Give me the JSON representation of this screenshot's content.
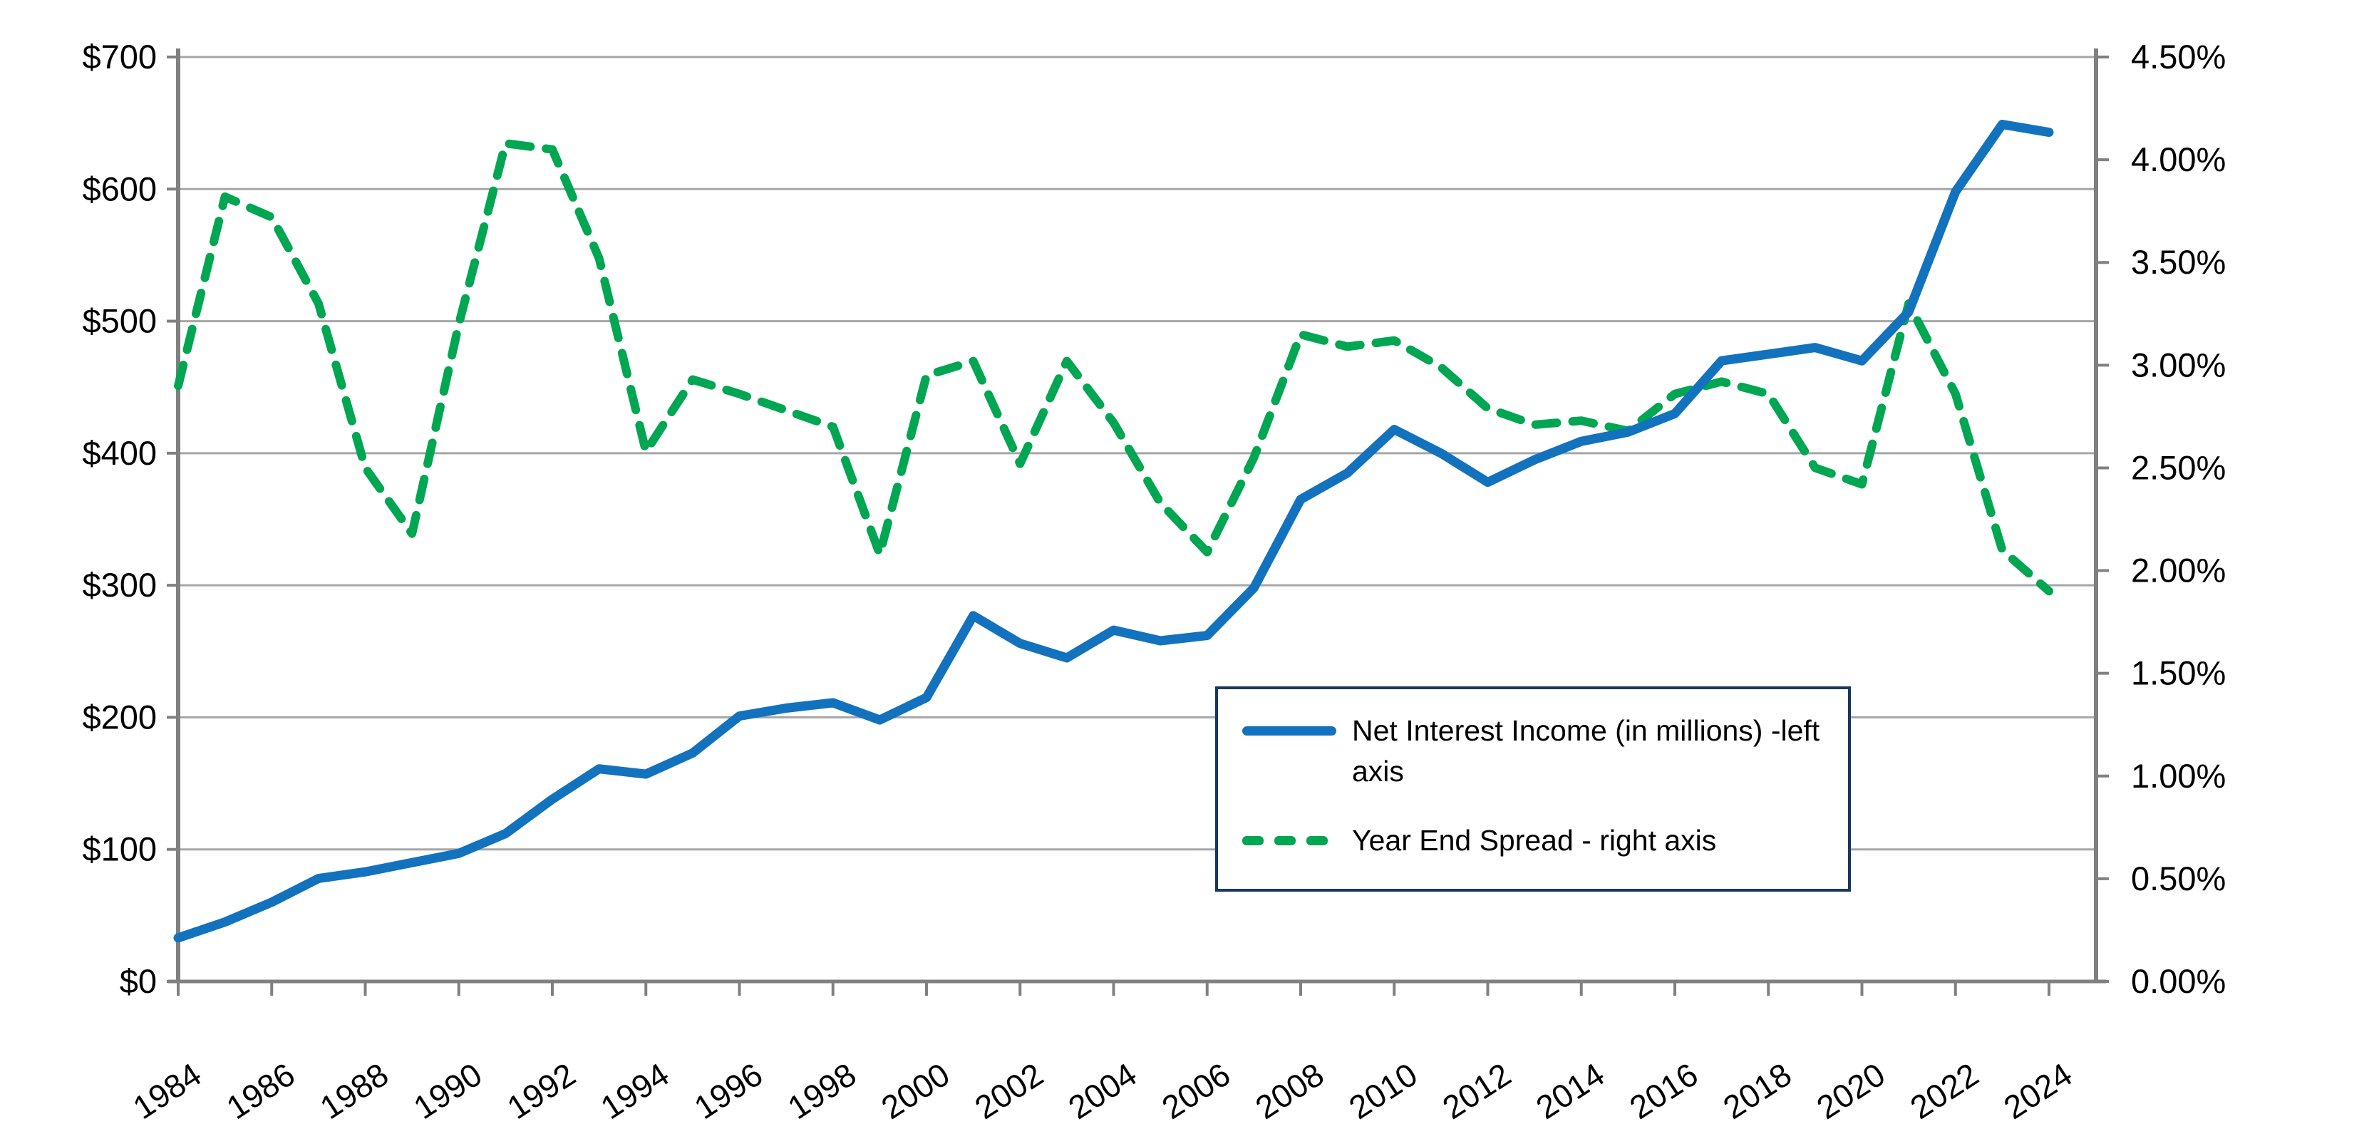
{
  "chart_data": {
    "type": "line",
    "title": "",
    "x": [
      1984,
      1985,
      1986,
      1987,
      1988,
      1989,
      1990,
      1991,
      1992,
      1993,
      1994,
      1995,
      1996,
      1997,
      1998,
      1999,
      2000,
      2001,
      2002,
      2003,
      2004,
      2005,
      2006,
      2007,
      2008,
      2009,
      2010,
      2011,
      2012,
      2013,
      2014,
      2015,
      2016,
      2017,
      2018,
      2019,
      2020,
      2021,
      2022,
      2023,
      2024
    ],
    "x_tick_labels": [
      "1984",
      "1986",
      "1988",
      "1990",
      "1992",
      "1994",
      "1996",
      "1998",
      "2000",
      "2002",
      "2004",
      "2006",
      "2008",
      "2010",
      "2012",
      "2014",
      "2016",
      "2018",
      "2020",
      "2022",
      "2024"
    ],
    "series": [
      {
        "name": "Net Interest Income (in millions) -left axis",
        "axis": "left",
        "style": "solid",
        "color": "#1272BD",
        "values": [
          33,
          45,
          60,
          78,
          83,
          90,
          97,
          112,
          138,
          161,
          157,
          173,
          201,
          207,
          211,
          198,
          215,
          277,
          256,
          245,
          266,
          258,
          262,
          298,
          365,
          385,
          418,
          400,
          378,
          395,
          409,
          416,
          430,
          470,
          475,
          480,
          470,
          507,
          598,
          649,
          643
        ]
      },
      {
        "name": "Year End Spread - right axis",
        "axis": "right",
        "style": "dashed",
        "color": "#00A651",
        "values": [
          2.9,
          3.82,
          3.72,
          3.3,
          2.5,
          2.18,
          3.2,
          4.08,
          4.05,
          3.52,
          2.58,
          2.93,
          2.86,
          2.78,
          2.7,
          2.08,
          2.95,
          3.02,
          2.52,
          3.02,
          2.72,
          2.33,
          2.09,
          2.55,
          3.15,
          3.09,
          3.12,
          2.99,
          2.79,
          2.71,
          2.73,
          2.68,
          2.86,
          2.92,
          2.86,
          2.5,
          2.42,
          3.3,
          2.86,
          2.1,
          1.9
        ]
      }
    ],
    "left_axis": {
      "tick_labels_top_to_bottom": [
        "$700",
        "$600",
        "$500",
        "$400",
        "$300",
        "$200",
        "$100",
        "$0"
      ],
      "min": 0,
      "max": 700,
      "step": 100
    },
    "right_axis": {
      "tick_labels_top_to_bottom": [
        "4.50%",
        "4.00%",
        "3.50%",
        "3.00%",
        "2.50%",
        "2.00%",
        "1.50%",
        "1.00%",
        "0.50%",
        "0.00%"
      ],
      "min": 0,
      "max": 4.5,
      "step": 0.5
    },
    "grid": "horizontal",
    "legend_position": "inside-bottom-right",
    "xlabel": "",
    "ylabel": ""
  },
  "colors": {
    "series_blue": "#1272BD",
    "series_green": "#00A651",
    "gridline": "#A6A6A6",
    "axis_line": "#808080",
    "tick_text": "#000000",
    "legend_border": "#17375E",
    "background": "#FFFFFF"
  }
}
